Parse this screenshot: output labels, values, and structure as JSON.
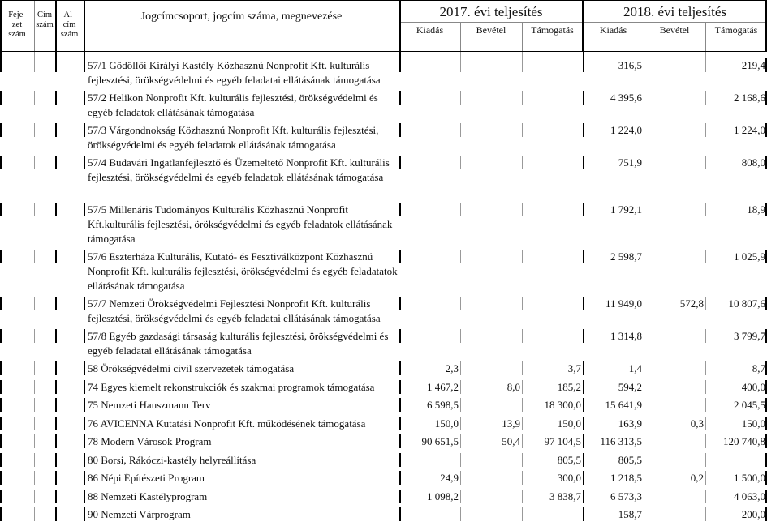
{
  "header": {
    "fejezet": "Feje-\nzet\nszám",
    "cim": "Cím\nszám",
    "alcim": "Al-\ncím\nszám",
    "jogcim": "Jogcímcsoport, jogcím száma, megnevezése",
    "year2017": "2017. évi teljesítés",
    "year2018": "2018. évi teljesítés",
    "kiadas": "Kiadás",
    "bevetel": "Bevétel",
    "tamogatas": "Támogatás"
  },
  "rows": [
    {
      "name": "57/1 Gödöllői Királyi Kastély Közhasznú Nonprofit Kft. kulturális fejlesztési, örökségvédelmi és egyéb feladatai ellátásának támogatása",
      "lines": 2,
      "v": [
        "",
        "",
        "",
        "316,5",
        "",
        "219,4"
      ]
    },
    {
      "name": "57/2 Helikon Nonprofit Kft. kulturális fejlesztési, örökségvédelmi és egyéb feladatok ellátásának támogatása",
      "lines": 2,
      "v": [
        "",
        "",
        "",
        "4 395,6",
        "",
        "2 168,6"
      ]
    },
    {
      "name": "57/3 Várgondnokság Közhasznú Nonprofit Kft. kulturális fejlesztési, örökségvédelmi és egyéb feladatok ellátásának támogatása",
      "lines": 2,
      "v": [
        "",
        "",
        "",
        "1 224,0",
        "",
        "1 224,0"
      ]
    },
    {
      "name": "57/4 Budavári Ingatlanfejlesztő és Üzemeltető Nonprofit Kft. kulturális fejlesztési, örökségvédelmi és egyéb feladatok ellátásának támogatása",
      "lines": 3,
      "v": [
        "",
        "",
        "",
        "751,9",
        "",
        "808,0"
      ]
    },
    {
      "name": "57/5 Millenáris Tudományos Kulturális Közhasznú Nonprofit Kft.kulturális fejlesztési, örökségvédelmi és egyéb feladatok ellátásának támogatása",
      "lines": 3,
      "v": [
        "",
        "",
        "",
        "1 792,1",
        "",
        "18,9"
      ]
    },
    {
      "name": "57/6 Eszterháza Kulturális, Kutató- és Fesztiválközpont Közhasznú Nonprofit Kft. kulturális fejlesztési, örökségvédelmi és egyéb feladatatok ellátásának támogatása",
      "lines": 3,
      "v": [
        "",
        "",
        "",
        "2 598,7",
        "",
        "1 025,9"
      ]
    },
    {
      "name": "57/7 Nemzeti Örökségvédelmi Fejlesztési Nonprofit Kft. kulturális fejlesztési, örökségvédelmi és egyéb feladatai ellátásának támogatása",
      "lines": 2,
      "v": [
        "",
        "",
        "",
        "11 949,0",
        "572,8",
        "10 807,6"
      ]
    },
    {
      "name": "57/8 Egyéb gazdasági társaság kulturális fejlesztési, örökségvédelmi és egyéb feladatai ellátásának támogatása",
      "lines": 2,
      "v": [
        "",
        "",
        "",
        "1 314,8",
        "",
        "3 799,7"
      ]
    },
    {
      "name": "58 Örökségvédelmi civil szervezetek támogatása",
      "lines": 1,
      "v": [
        "2,3",
        "",
        "3,7",
        "1,4",
        "",
        "8,7"
      ]
    },
    {
      "name": "74 Egyes kiemelt rekonstrukciók és szakmai programok támogatása",
      "lines": 1,
      "v": [
        "1 467,2",
        "8,0",
        "185,2",
        "594,2",
        "",
        "400,0"
      ]
    },
    {
      "name": "75 Nemzeti Hauszmann Terv",
      "lines": 1,
      "v": [
        "6 598,5",
        "",
        "18 300,0",
        "15 641,9",
        "",
        "2 045,5"
      ]
    },
    {
      "name": "76 AVICENNA Kutatási Nonprofit Kft. működésének támogatása",
      "lines": 1,
      "v": [
        "150,0",
        "13,9",
        "150,0",
        "163,9",
        "0,3",
        "150,0"
      ]
    },
    {
      "name": "78 Modern Városok Program",
      "lines": 1,
      "v": [
        "90 651,5",
        "50,4",
        "97 104,5",
        "116 313,5",
        "",
        "120 740,8"
      ]
    },
    {
      "name": "80 Borsi, Rákóczi-kastély helyreállítása",
      "lines": 1,
      "v": [
        "",
        "",
        "805,5",
        "805,5",
        "",
        ""
      ]
    },
    {
      "name": "86 Népi Építészeti Program",
      "lines": 1,
      "v": [
        "24,9",
        "",
        "300,0",
        "1 218,5",
        "0,2",
        "1 500,0"
      ]
    },
    {
      "name": "88 Nemzeti Kastélyprogram",
      "lines": 1,
      "v": [
        "1 098,2",
        "",
        "3 838,7",
        "6 573,3",
        "",
        "4 063,0"
      ]
    },
    {
      "name": "90 Nemzeti Várprogram",
      "lines": 1,
      "v": [
        "",
        "",
        "",
        "158,7",
        "",
        "200,0"
      ]
    }
  ]
}
